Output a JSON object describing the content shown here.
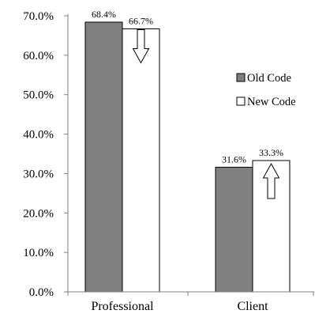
{
  "chart_data": {
    "type": "bar",
    "categories": [
      "Professional",
      "Client"
    ],
    "series": [
      {
        "name": "Old Code",
        "values": [
          68.4,
          31.6
        ],
        "labels": [
          "68.4%",
          "31.6%"
        ],
        "color": "#808080"
      },
      {
        "name": "New Code",
        "values": [
          66.7,
          33.3
        ],
        "labels": [
          "66.7%",
          "33.3%"
        ],
        "color": "#ffffff"
      }
    ],
    "yticks": [
      0,
      10,
      20,
      30,
      40,
      50,
      60,
      70
    ],
    "ytick_labels": [
      "0.0%",
      "10.0%",
      "20.0%",
      "30.0%",
      "40.0%",
      "50.0%",
      "60.0%",
      "70.0%"
    ],
    "ylim": [
      0,
      70
    ],
    "title": "",
    "xlabel": "",
    "ylabel": "",
    "grid": false,
    "legend_position": "right",
    "annotations": [
      {
        "category": "Professional",
        "series": "New Code",
        "arrow": "down"
      },
      {
        "category": "Client",
        "series": "New Code",
        "arrow": "up"
      }
    ],
    "colors": {
      "axis": "#808080",
      "bar_outline": "#000000"
    }
  }
}
